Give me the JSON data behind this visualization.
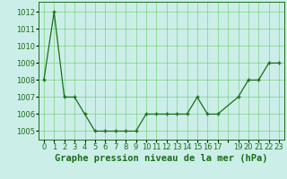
{
  "x": [
    0,
    1,
    2,
    3,
    4,
    5,
    6,
    7,
    8,
    9,
    10,
    11,
    12,
    13,
    14,
    15,
    16,
    17,
    19,
    20,
    21,
    22,
    23
  ],
  "y": [
    1008,
    1012,
    1007,
    1007,
    1006,
    1005,
    1005,
    1005,
    1005,
    1005,
    1006,
    1006,
    1006,
    1006,
    1006,
    1007,
    1006,
    1006,
    1007,
    1008,
    1008,
    1009,
    1009
  ],
  "line_color": "#1a6e1a",
  "marker_color": "#1a6e1a",
  "bg_color": "#cceee8",
  "grid_color": "#66cc66",
  "title": "Graphe pression niveau de la mer (hPa)",
  "ylim_min": 1004.5,
  "ylim_max": 1012.6,
  "yticks": [
    1005,
    1006,
    1007,
    1008,
    1009,
    1010,
    1011,
    1012
  ],
  "xtick_labels": [
    "0",
    "1",
    "2",
    "3",
    "4",
    "5",
    "6",
    "7",
    "8",
    "9",
    "10",
    "11",
    "12",
    "13",
    "14",
    "15",
    "16",
    "17",
    "",
    "19",
    "20",
    "21",
    "22",
    "23"
  ],
  "title_fontsize": 7.5,
  "tick_fontsize": 6.0,
  "xlabel_fontsize": 7.5
}
